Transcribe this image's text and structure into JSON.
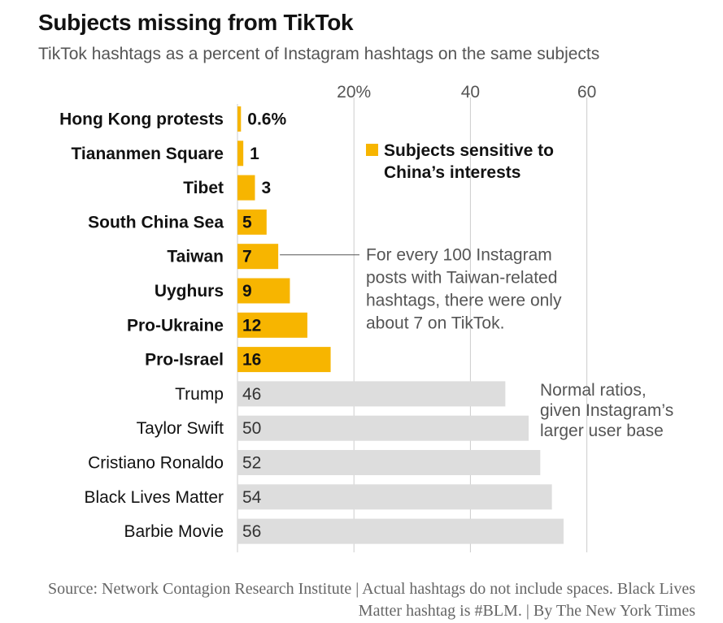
{
  "title": "Subjects missing from TikTok",
  "subtitle": "TikTok hashtags as a percent of Instagram hashtags on the same subjects",
  "source": "Source: Network Contagion Research Institute | Actual hashtags do not include spaces. Black Lives Matter hashtag is #BLM. | By The New York Times",
  "colors": {
    "sensitive": "#F7B500",
    "normal": "#DDDDDD",
    "grid": "#CCCCCC",
    "text": "#121212",
    "muted": "#555555"
  },
  "chart_data": {
    "type": "bar",
    "orientation": "horizontal",
    "xlim": [
      0,
      60
    ],
    "xticks": [
      20,
      40,
      60
    ],
    "xtick_labels": [
      "20%",
      "40",
      "60"
    ],
    "grid": true,
    "categories": [
      "Hong Kong protests",
      "Tiananmen Square",
      "Tibet",
      "South China Sea",
      "Taiwan",
      "Uyghurs",
      "Pro-Ukraine",
      "Pro-Israel",
      "Trump",
      "Taylor Swift",
      "Cristiano Ronaldo",
      "Black Lives Matter",
      "Barbie Movie"
    ],
    "values": [
      0.6,
      1,
      3,
      5,
      7,
      9,
      12,
      16,
      46,
      50,
      52,
      54,
      56
    ],
    "value_labels": [
      "0.6%",
      "1",
      "3",
      "5",
      "7",
      "9",
      "12",
      "16",
      "46",
      "50",
      "52",
      "54",
      "56"
    ],
    "group": [
      "sensitive",
      "sensitive",
      "sensitive",
      "sensitive",
      "sensitive",
      "sensitive",
      "sensitive",
      "sensitive",
      "normal",
      "normal",
      "normal",
      "normal",
      "normal"
    ],
    "legend": {
      "label_lines": [
        "Subjects sensitive to",
        "China’s interests"
      ],
      "placement": "top-right"
    },
    "annotations": [
      {
        "target": "Taiwan",
        "lines": [
          "For every 100 Instagram",
          "posts with Taiwan-related",
          "hashtags, there were only",
          "about 7 on TikTok."
        ]
      },
      {
        "target": "Trump",
        "lines": [
          "Normal ratios,",
          "given Instagram’s",
          "larger user base"
        ]
      }
    ]
  }
}
